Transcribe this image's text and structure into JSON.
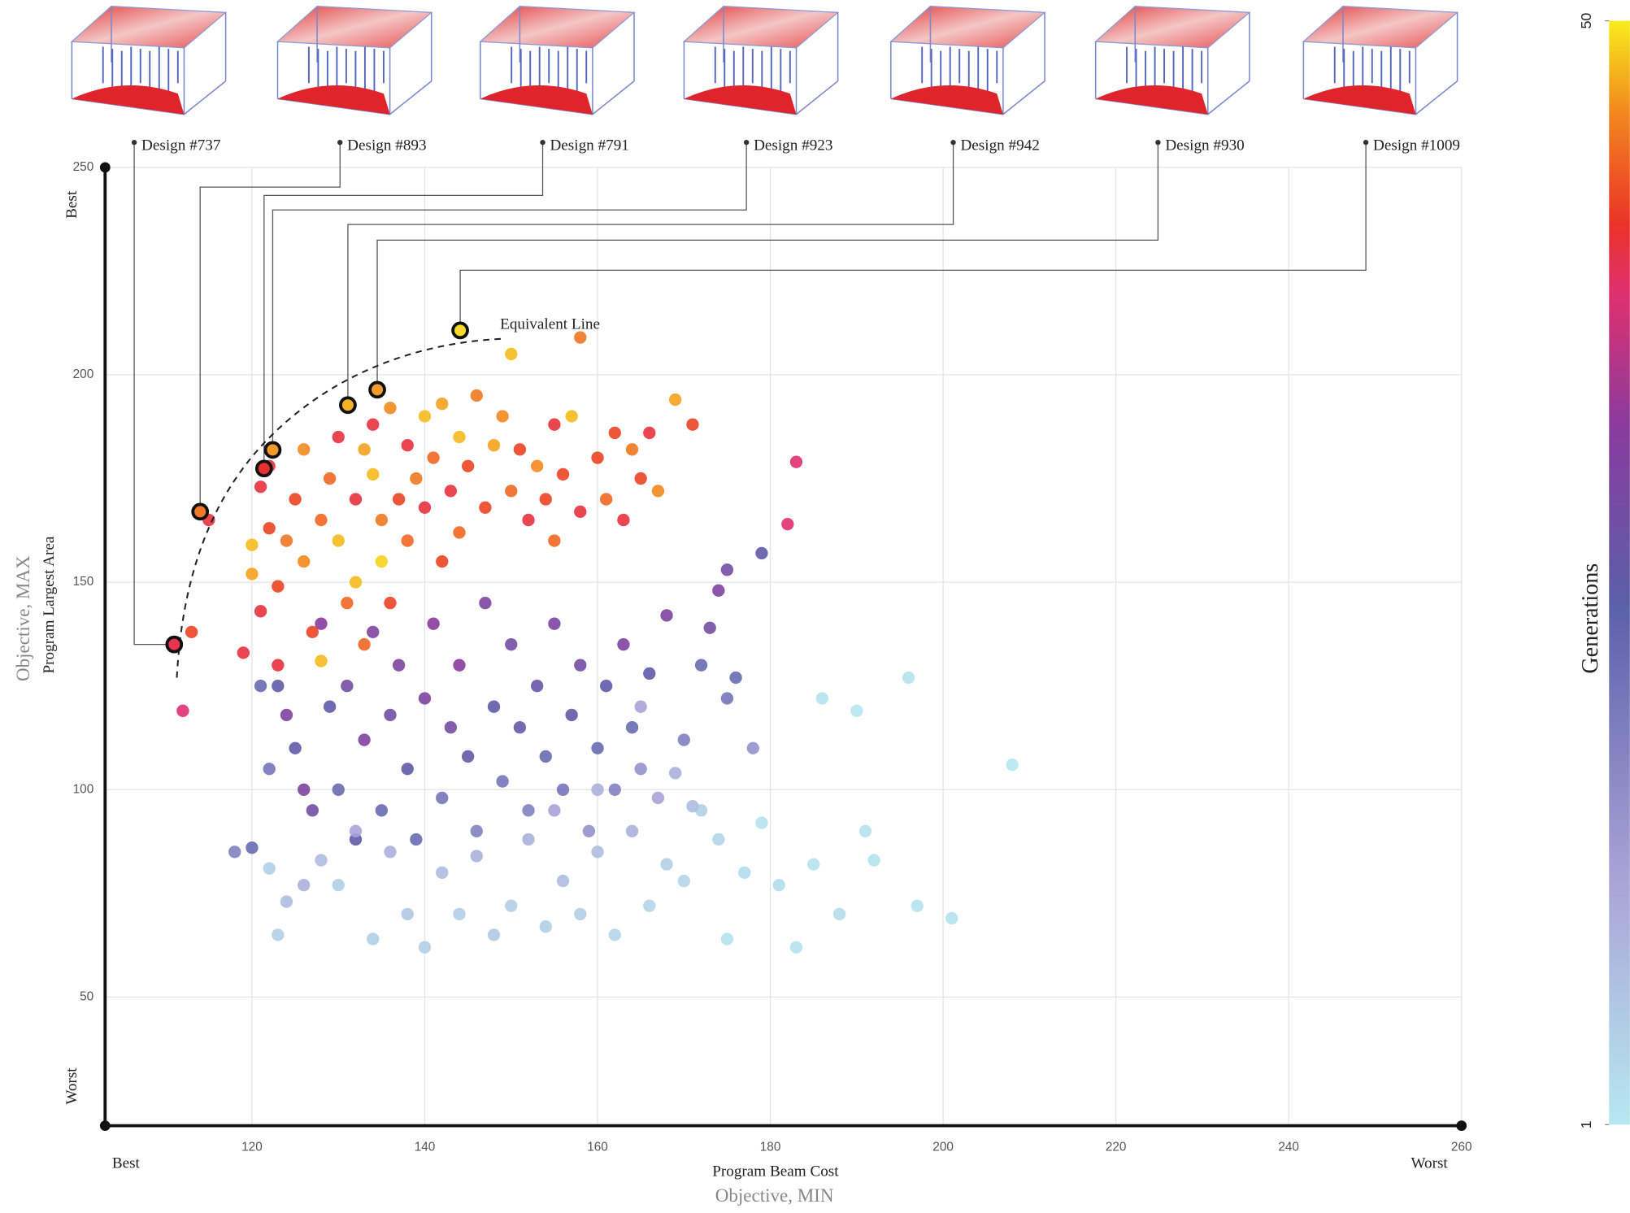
{
  "chart_data": {
    "type": "scatter",
    "xlabel": "Program Beam Cost",
    "xlabel_objective": "Objective, MIN",
    "ylabel": "Program Largest Area",
    "ylabel_objective": "Objective, MAX",
    "x_ends": [
      "Best",
      "Worst"
    ],
    "y_ends": [
      "Best",
      "Worst"
    ],
    "annotation": "Equivalent Line",
    "xlim": [
      103,
      260
    ],
    "ylim": [
      19,
      250
    ],
    "xticks": [
      120,
      140,
      160,
      180,
      200,
      220,
      240,
      260
    ],
    "yticks": [
      50,
      100,
      150,
      200,
      250
    ],
    "grid": true,
    "x": [
      112,
      113,
      115,
      119,
      120,
      120,
      121,
      121,
      122,
      122,
      123,
      123,
      124,
      125,
      126,
      126,
      127,
      128,
      128,
      129,
      130,
      130,
      131,
      132,
      132,
      133,
      133,
      134,
      134,
      135,
      135,
      136,
      136,
      137,
      138,
      138,
      139,
      140,
      140,
      141,
      142,
      142,
      143,
      144,
      144,
      145,
      146,
      147,
      148,
      149,
      150,
      150,
      151,
      152,
      153,
      154,
      155,
      155,
      156,
      157,
      158,
      158,
      160,
      161,
      162,
      163,
      164,
      165,
      166,
      167,
      169,
      171,
      183,
      182,
      121,
      122,
      123,
      124,
      125,
      126,
      127,
      128,
      129,
      130,
      131,
      132,
      133,
      134,
      135,
      136,
      137,
      138,
      139,
      140,
      141,
      142,
      143,
      144,
      145,
      146,
      147,
      148,
      149,
      150,
      151,
      152,
      153,
      154,
      155,
      156,
      157,
      158,
      159,
      160,
      161,
      162,
      163,
      164,
      165,
      166,
      167,
      168,
      170,
      172,
      175,
      176,
      178,
      179,
      175,
      174,
      173,
      118,
      120,
      122,
      123,
      124,
      126,
      128,
      130,
      132,
      134,
      136,
      138,
      140,
      142,
      144,
      146,
      148,
      150,
      152,
      154,
      156,
      158,
      160,
      162,
      164,
      166,
      168,
      170,
      172,
      174,
      175,
      177,
      179,
      181,
      183,
      185,
      186,
      188,
      190,
      191,
      192,
      196,
      197,
      201,
      208,
      169,
      171,
      165,
      160,
      155
    ],
    "y": [
      119,
      138,
      165,
      133,
      159,
      152,
      143,
      173,
      163,
      178,
      149,
      125,
      160,
      170,
      182,
      155,
      138,
      131,
      165,
      175,
      185,
      160,
      145,
      170,
      150,
      182,
      135,
      188,
      176,
      165,
      155,
      192,
      145,
      170,
      183,
      160,
      175,
      190,
      168,
      180,
      155,
      193,
      172,
      185,
      162,
      178,
      195,
      168,
      183,
      190,
      205,
      172,
      182,
      165,
      178,
      170,
      188,
      160,
      176,
      190,
      209,
      167,
      180,
      170,
      186,
      165,
      182,
      175,
      186,
      172,
      194,
      188,
      179,
      164,
      125,
      105,
      130,
      118,
      110,
      100,
      95,
      140,
      120,
      100,
      125,
      88,
      112,
      138,
      95,
      118,
      130,
      105,
      88,
      122,
      140,
      98,
      115,
      130,
      108,
      90,
      145,
      120,
      102,
      135,
      115,
      95,
      125,
      108,
      140,
      100,
      118,
      130,
      90,
      110,
      125,
      100,
      135,
      115,
      105,
      128,
      98,
      142,
      112,
      130,
      122,
      127,
      110,
      157,
      153,
      148,
      139,
      85,
      86,
      81,
      65,
      73,
      77,
      83,
      77,
      90,
      64,
      85,
      70,
      62,
      80,
      70,
      84,
      65,
      72,
      88,
      67,
      78,
      70,
      85,
      65,
      90,
      72,
      82,
      78,
      95,
      88,
      64,
      80,
      92,
      77,
      62,
      82,
      122,
      70,
      119,
      90,
      83,
      127,
      72,
      69,
      106,
      104,
      96,
      120,
      100,
      95
    ],
    "generation": [
      38,
      42,
      40,
      40,
      48,
      47,
      40,
      40,
      42,
      40,
      42,
      25,
      45,
      42,
      46,
      46,
      42,
      48,
      44,
      44,
      40,
      48,
      44,
      40,
      48,
      47,
      44,
      40,
      48,
      45,
      49,
      46,
      42,
      42,
      40,
      44,
      45,
      48,
      40,
      44,
      42,
      47,
      40,
      48,
      44,
      42,
      45,
      42,
      47,
      46,
      48,
      44,
      42,
      40,
      46,
      42,
      40,
      44,
      42,
      48,
      45,
      40,
      42,
      44,
      42,
      40,
      45,
      42,
      40,
      46,
      47,
      42,
      38,
      38,
      22,
      20,
      40,
      30,
      25,
      30,
      28,
      32,
      25,
      22,
      28,
      25,
      30,
      30,
      22,
      28,
      30,
      25,
      22,
      30,
      32,
      20,
      28,
      32,
      25,
      18,
      30,
      25,
      20,
      28,
      25,
      18,
      26,
      22,
      30,
      20,
      25,
      28,
      15,
      22,
      25,
      18,
      30,
      22,
      15,
      25,
      12,
      30,
      18,
      22,
      20,
      22,
      15,
      25,
      28,
      30,
      28,
      18,
      22,
      5,
      5,
      8,
      10,
      8,
      5,
      12,
      5,
      10,
      6,
      5,
      8,
      5,
      10,
      6,
      5,
      10,
      5,
      8,
      5,
      8,
      4,
      10,
      4,
      5,
      4,
      5,
      4,
      2,
      3,
      2,
      3,
      2,
      2,
      2,
      3,
      1,
      2,
      2,
      2,
      2,
      2,
      1,
      10,
      8,
      12,
      10,
      12
    ],
    "highlighted": [
      {
        "label": "Design #737",
        "x": 111,
        "y": 135,
        "color": "#e8344e"
      },
      {
        "label": "Design #893",
        "x": 114,
        "y": 167,
        "color": "#ef7a2a"
      },
      {
        "label": "Design #791",
        "x": 121.4,
        "y": 177.4,
        "color": "#e8302e"
      },
      {
        "label": "Design #923",
        "x": 122.4,
        "y": 181.9,
        "color": "#f29a2a"
      },
      {
        "label": "Design #942",
        "x": 131.1,
        "y": 192.7,
        "color": "#f6b227"
      },
      {
        "label": "Design #930",
        "x": 134.5,
        "y": 196.4,
        "color": "#f39b2c"
      },
      {
        "label": "Design #1009",
        "x": 144.1,
        "y": 210.7,
        "color": "#f8d92a"
      }
    ],
    "colorbar": {
      "label": "Generations",
      "lim": [
        1,
        50
      ],
      "ticks": [
        1,
        50
      ],
      "stops": [
        {
          "value": 1,
          "color": "#b6e8f0"
        },
        {
          "value": 12,
          "color": "#a9a3d6"
        },
        {
          "value": 24,
          "color": "#5a60aa"
        },
        {
          "value": 32,
          "color": "#8a3b9e"
        },
        {
          "value": 38,
          "color": "#e0306e"
        },
        {
          "value": 41,
          "color": "#ea3327"
        },
        {
          "value": 46,
          "color": "#f2891f"
        },
        {
          "value": 50,
          "color": "#f8ec1c"
        }
      ]
    }
  }
}
